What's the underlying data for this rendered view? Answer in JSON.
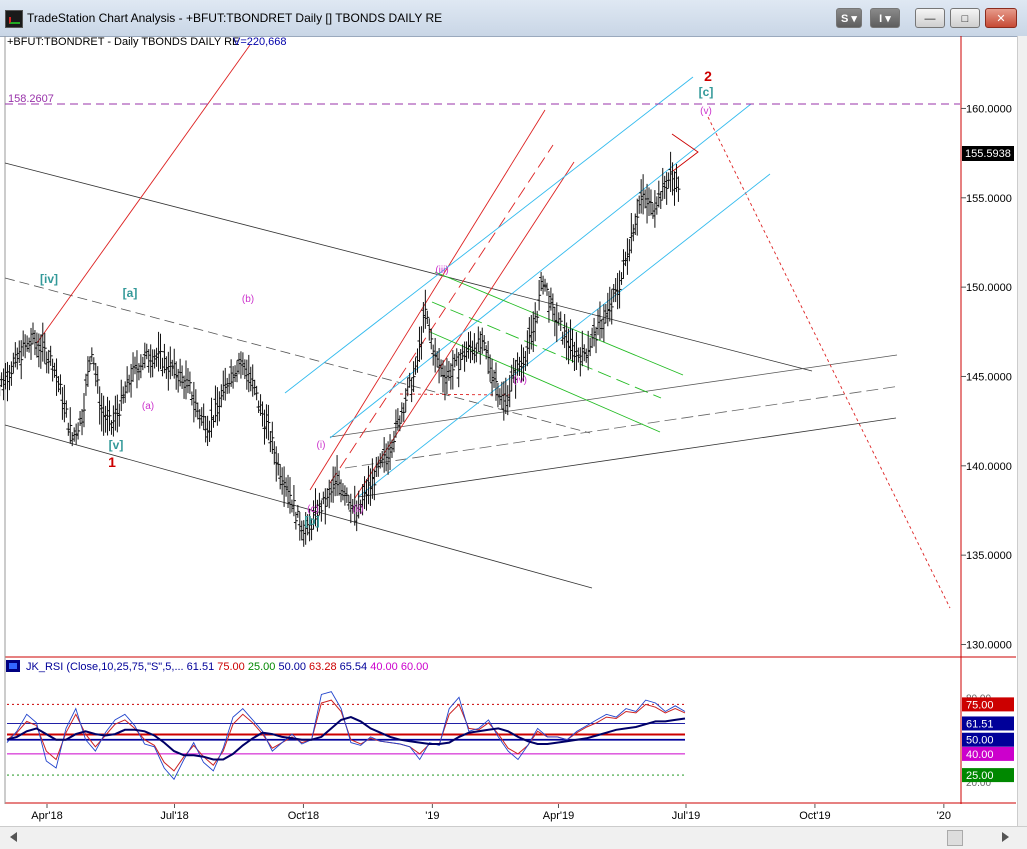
{
  "window": {
    "title": "TradeStation Chart Analysis - +BFUT:TBONDRET Daily [] TBONDS DAILY RE",
    "buttons": {
      "s": "S",
      "i": "I",
      "minimize": "—",
      "maximize": "□",
      "close": "✕"
    }
  },
  "colors": {
    "red": "#cc0000",
    "cyan": "#33bbee",
    "green": "#22bb22",
    "magenta": "#cc33cc",
    "teal": "#339999",
    "grey": "#333333",
    "navy": "#000099"
  },
  "price_panel": {
    "header_symbol": "+BFUT:TBONDRET - Daily  TBONDS DAILY RE",
    "header_volume": "V=220,668",
    "hline_label": "158.2607",
    "last_price": "155.5938"
  },
  "rsi_panel": {
    "name": "JK_RSI (Close,10,25,75,\"S\",5,...",
    "values": [
      {
        "text": "61.51",
        "color": "#000099"
      },
      {
        "text": "75.00",
        "color": "#cc0000"
      },
      {
        "text": "25.00",
        "color": "#008800"
      },
      {
        "text": "50.00",
        "color": "#000099"
      },
      {
        "text": "63.28",
        "color": "#cc0000"
      },
      {
        "text": "65.54",
        "color": "#000099"
      },
      {
        "text": "40.00",
        "color": "#cc00cc"
      },
      {
        "text": "60.00",
        "color": "#cc00cc"
      }
    ],
    "axis_labels": [
      "80.00",
      "20.00"
    ],
    "badges": [
      {
        "text": "75.00",
        "bg": "#cc0000"
      },
      {
        "text": "61.51",
        "bg": "#000099"
      },
      {
        "text": "50.00",
        "bg": "#000099"
      },
      {
        "text": "40.00",
        "bg": "#cc00cc"
      },
      {
        "text": "25.00",
        "bg": "#008800"
      }
    ]
  },
  "chart_data": {
    "type": "line",
    "title": "",
    "y_ticks": [
      "160.0000",
      "155.0000",
      "150.0000",
      "145.0000",
      "140.0000",
      "135.0000",
      "130.0000"
    ],
    "y_tick_values": [
      160,
      155,
      150,
      145,
      140,
      135,
      130
    ],
    "ylim": [
      129.3,
      162.6
    ],
    "x_ticks": [
      "Apr'18",
      "Jul'18",
      "Oct'18",
      "'19",
      "Apr'19",
      "Jul'19",
      "Oct'19",
      "'20"
    ],
    "series": [
      {
        "x": [
          "2018-02-22",
          "2018-03-01",
          "2018-03-08",
          "2018-03-15",
          "2018-03-22",
          "2018-03-29",
          "2018-04-05",
          "2018-04-12",
          "2018-04-19",
          "2018-04-26",
          "2018-05-03",
          "2018-05-10",
          "2018-05-17",
          "2018-05-24",
          "2018-05-31",
          "2018-06-07",
          "2018-06-14",
          "2018-06-21",
          "2018-06-28",
          "2018-07-05",
          "2018-07-12",
          "2018-07-19",
          "2018-07-26",
          "2018-08-02",
          "2018-08-09",
          "2018-08-16",
          "2018-08-23",
          "2018-08-30",
          "2018-09-06",
          "2018-09-13",
          "2018-09-20",
          "2018-09-27",
          "2018-10-04",
          "2018-10-11",
          "2018-10-18",
          "2018-10-25",
          "2018-11-01",
          "2018-11-08",
          "2018-11-15",
          "2018-11-22",
          "2018-11-29",
          "2018-12-06",
          "2018-12-13",
          "2018-12-20",
          "2018-12-27",
          "2019-01-03",
          "2019-01-10",
          "2019-01-17",
          "2019-01-24",
          "2019-01-31",
          "2019-02-07",
          "2019-02-14",
          "2019-02-21",
          "2019-02-28",
          "2019-03-07",
          "2019-03-14",
          "2019-03-21",
          "2019-03-28",
          "2019-04-04",
          "2019-04-11",
          "2019-04-18",
          "2019-04-25",
          "2019-05-02",
          "2019-05-09",
          "2019-05-16",
          "2019-05-23",
          "2019-05-30",
          "2019-06-06",
          "2019-06-13",
          "2019-06-20",
          "2019-06-27"
        ],
        "values": [
          144.2,
          144.8,
          145.6,
          146.5,
          147.0,
          146.5,
          145.8,
          143.8,
          141.5,
          142.8,
          146.6,
          143.0,
          142.2,
          143.5,
          145.0,
          145.8,
          146.2,
          146.0,
          145.5,
          145.0,
          144.3,
          142.8,
          142.3,
          143.5,
          145.0,
          145.8,
          145.2,
          143.5,
          142.0,
          140.0,
          138.8,
          137.0,
          136.3,
          137.5,
          138.0,
          139.2,
          138.5,
          137.2,
          138.5,
          139.5,
          140.5,
          142.0,
          143.8,
          145.2,
          148.6,
          146.0,
          145.0,
          145.5,
          146.3,
          146.8,
          146.5,
          145.0,
          143.5,
          145.0,
          146.0,
          147.5,
          150.5,
          148.5,
          147.5,
          146.5,
          146.2,
          147.0,
          148.0,
          149.0,
          150.5,
          153.0,
          155.0,
          154.5,
          155.2,
          156.2,
          155.59
        ]
      }
    ],
    "wave_labels": [
      {
        "text": "[iv]",
        "color": "#339999"
      },
      {
        "text": "[a]",
        "color": "#339999"
      },
      {
        "text": "(b)",
        "color": "#cc33cc"
      },
      {
        "text": "(a)",
        "color": "#cc33cc"
      },
      {
        "text": "[v]",
        "color": "#339999"
      },
      {
        "text": "1",
        "color": "#cc0000"
      },
      {
        "text": "(i)",
        "color": "#cc33cc"
      },
      {
        "text": "(c)",
        "color": "#cc33cc"
      },
      {
        "text": "[b]",
        "color": "#339999"
      },
      {
        "text": "(ii)",
        "color": "#cc33cc"
      },
      {
        "text": "(iii)",
        "color": "#cc33cc"
      },
      {
        "text": "(iv)",
        "color": "#cc33cc"
      },
      {
        "text": "2",
        "color": "#cc0000"
      },
      {
        "text": "[c]",
        "color": "#339999"
      },
      {
        "text": "(v)",
        "color": "#cc33cc"
      }
    ],
    "rsi": {
      "ylim": [
        18,
        88
      ],
      "levels": [
        75,
        61.51,
        50,
        40,
        25
      ],
      "fast": [
        48,
        56,
        68,
        62,
        35,
        30,
        58,
        72,
        50,
        42,
        55,
        64,
        68,
        60,
        47,
        45,
        30,
        22,
        36,
        48,
        34,
        28,
        44,
        66,
        72,
        64,
        56,
        42,
        48,
        54,
        47,
        50,
        82,
        84,
        72,
        48,
        46,
        52,
        49,
        48,
        47,
        45,
        36,
        48,
        46,
        72,
        80,
        56,
        58,
        64,
        52,
        42,
        36,
        46,
        58,
        52,
        52,
        50,
        56,
        60,
        64,
        68,
        66,
        72,
        70,
        78,
        76,
        70,
        74,
        70
      ],
      "medium": [
        50,
        55,
        63,
        60,
        42,
        36,
        55,
        68,
        54,
        45,
        53,
        61,
        64,
        58,
        50,
        46,
        34,
        28,
        38,
        46,
        38,
        32,
        42,
        61,
        68,
        62,
        54,
        44,
        48,
        52,
        48,
        50,
        76,
        78,
        70,
        50,
        47,
        51,
        49,
        48,
        47,
        45,
        40,
        47,
        47,
        68,
        75,
        58,
        57,
        62,
        54,
        44,
        40,
        46,
        56,
        52,
        52,
        50,
        55,
        59,
        62,
        66,
        65,
        70,
        69,
        75,
        73,
        69,
        72,
        69
      ],
      "slow": [
        50,
        52,
        56,
        58,
        54,
        50,
        50,
        54,
        56,
        54,
        53,
        54,
        57,
        57,
        56,
        53,
        48,
        42,
        39,
        39,
        38,
        36,
        36,
        40,
        46,
        51,
        55,
        54,
        52,
        51,
        50,
        50,
        52,
        58,
        64,
        66,
        63,
        58,
        55,
        52,
        50,
        49,
        48,
        47,
        47,
        48,
        52,
        55,
        56,
        57,
        58,
        56,
        52,
        49,
        47,
        47,
        48,
        49,
        50,
        51,
        53,
        55,
        57,
        58,
        59,
        61,
        63,
        63,
        64,
        65
      ]
    }
  }
}
